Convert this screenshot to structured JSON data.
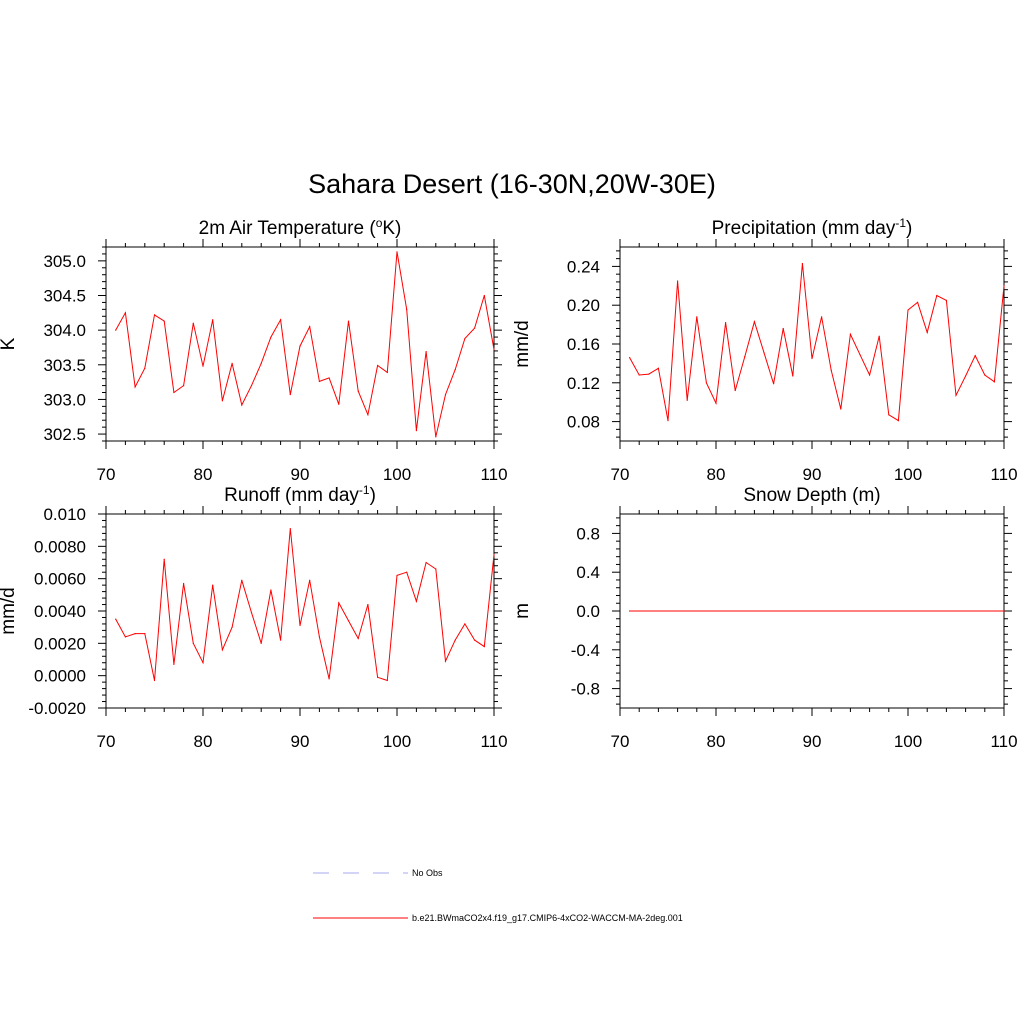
{
  "main_title": "Sahara Desert (16-30N,20W-30E)",
  "colors": {
    "series": "#ff0000",
    "obs": "#aaaaee",
    "axis": "#000000"
  },
  "legend": {
    "entries": [
      {
        "label": "No Obs",
        "style": "dashed",
        "color": "#aaaaee"
      },
      {
        "label": "b.e21.BWmaCO2x4.f19_g17.CMIP6-4xCO2-WACCM-MA-2deg.001",
        "style": "solid",
        "color": "#ff0000"
      }
    ]
  },
  "chart_data": [
    {
      "id": "temp",
      "type": "line",
      "title": "2m Air Temperature (",
      "title_sup": "o",
      "title_after": "K)",
      "ylabel": "K",
      "xlim": [
        70,
        110
      ],
      "ylim": [
        302.4,
        305.2
      ],
      "xticks": [
        70,
        80,
        90,
        100,
        110
      ],
      "yticks": [
        302.5,
        303.0,
        303.5,
        304.0,
        304.5,
        305.0
      ],
      "ytick_labels": [
        "302.5",
        "303.0",
        "303.5",
        "304.0",
        "304.5",
        "305.0"
      ],
      "x": [
        71,
        72,
        73,
        74,
        75,
        76,
        77,
        78,
        79,
        80,
        81,
        82,
        83,
        84,
        85,
        86,
        87,
        88,
        89,
        90,
        91,
        92,
        93,
        94,
        95,
        96,
        97,
        98,
        99,
        100,
        101,
        102,
        103,
        104,
        105,
        106,
        107,
        108,
        109,
        110
      ],
      "values": [
        304.0,
        304.25,
        303.18,
        303.45,
        304.22,
        304.13,
        303.1,
        303.2,
        304.1,
        303.48,
        304.15,
        302.98,
        303.52,
        302.92,
        303.2,
        303.52,
        303.9,
        304.15,
        303.07,
        303.77,
        304.05,
        303.26,
        303.31,
        302.93,
        304.13,
        303.12,
        302.78,
        303.49,
        303.39,
        305.13,
        304.3,
        302.55,
        303.69,
        302.46,
        303.07,
        303.43,
        303.88,
        304.03,
        304.5,
        303.72
      ],
      "series_name": "b.e21.BWmaCO2x4.f19_g17.CMIP6-4xCO2-WACCM-MA-2deg.001"
    },
    {
      "id": "precip",
      "type": "line",
      "title": "Precipitation (mm day",
      "title_sup": "-1",
      "title_after": ")",
      "ylabel": "mm/d",
      "xlim": [
        70,
        110
      ],
      "ylim": [
        0.06,
        0.26
      ],
      "xticks": [
        70,
        80,
        90,
        100,
        110
      ],
      "yticks": [
        0.08,
        0.12,
        0.16,
        0.2,
        0.24
      ],
      "ytick_labels": [
        "0.08",
        "0.12",
        "0.16",
        "0.20",
        "0.24"
      ],
      "x": [
        71,
        72,
        73,
        74,
        75,
        76,
        77,
        78,
        79,
        80,
        81,
        82,
        83,
        84,
        85,
        86,
        87,
        88,
        89,
        90,
        91,
        92,
        93,
        94,
        95,
        96,
        97,
        98,
        99,
        100,
        101,
        102,
        103,
        104,
        105,
        106,
        107,
        108,
        109,
        110
      ],
      "values": [
        0.146,
        0.128,
        0.129,
        0.135,
        0.081,
        0.225,
        0.102,
        0.188,
        0.12,
        0.099,
        0.182,
        0.112,
        0.147,
        0.183,
        0.151,
        0.119,
        0.176,
        0.127,
        0.243,
        0.145,
        0.188,
        0.133,
        0.093,
        0.17,
        0.149,
        0.128,
        0.168,
        0.087,
        0.081,
        0.195,
        0.203,
        0.172,
        0.21,
        0.205,
        0.107,
        0.127,
        0.148,
        0.128,
        0.121,
        0.22
      ],
      "series_name": "b.e21.BWmaCO2x4.f19_g17.CMIP6-4xCO2-WACCM-MA-2deg.001"
    },
    {
      "id": "runoff",
      "type": "line",
      "title": "Runoff (mm day",
      "title_sup": "-1",
      "title_after": ")",
      "ylabel": "mm/d",
      "xlim": [
        70,
        110
      ],
      "ylim": [
        -0.002,
        0.01
      ],
      "xticks": [
        70,
        80,
        90,
        100,
        110
      ],
      "yticks": [
        -0.002,
        0.0,
        0.002,
        0.004,
        0.006,
        0.008,
        0.01
      ],
      "ytick_labels": [
        "-0.0020",
        "0.0000",
        "0.0020",
        "0.0040",
        "0.0060",
        "0.0080",
        "0.010"
      ],
      "x": [
        71,
        72,
        73,
        74,
        75,
        76,
        77,
        78,
        79,
        80,
        81,
        82,
        83,
        84,
        85,
        86,
        87,
        88,
        89,
        90,
        91,
        92,
        93,
        94,
        95,
        96,
        97,
        98,
        99,
        100,
        101,
        102,
        103,
        104,
        105,
        106,
        107,
        108,
        109,
        110
      ],
      "values": [
        0.0035,
        0.0024,
        0.0026,
        0.0026,
        -0.0003,
        0.0072,
        0.0007,
        0.0057,
        0.002,
        0.0008,
        0.0056,
        0.0016,
        0.003,
        0.0059,
        0.0039,
        0.002,
        0.0053,
        0.0022,
        0.0091,
        0.0031,
        0.0059,
        0.0024,
        -0.0002,
        0.0045,
        0.0034,
        0.0023,
        0.0044,
        -0.0001,
        -0.0003,
        0.0062,
        0.0064,
        0.0046,
        0.007,
        0.0066,
        0.0009,
        0.0022,
        0.0032,
        0.0022,
        0.0018,
        0.0075
      ],
      "series_name": "b.e21.BWmaCO2x4.f19_g17.CMIP6-4xCO2-WACCM-MA-2deg.001"
    },
    {
      "id": "snow",
      "type": "line",
      "title": "Snow Depth (m)",
      "title_sup": "",
      "title_after": "",
      "ylabel": "m",
      "xlim": [
        70,
        110
      ],
      "ylim": [
        -1.0,
        1.0
      ],
      "xticks": [
        70,
        80,
        90,
        100,
        110
      ],
      "yticks": [
        -0.8,
        -0.4,
        0.0,
        0.4,
        0.8
      ],
      "ytick_labels": [
        "-0.8",
        "-0.4",
        "0.0",
        "0.4",
        "0.8"
      ],
      "x": [
        71,
        110
      ],
      "values": [
        0.0,
        0.0
      ],
      "series_name": "b.e21.BWmaCO2x4.f19_g17.CMIP6-4xCO2-WACCM-MA-2deg.001"
    }
  ]
}
